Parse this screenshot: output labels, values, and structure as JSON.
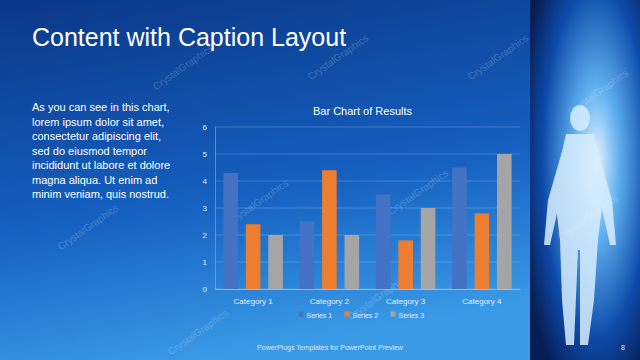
{
  "slide": {
    "title": "Content with Caption Layout",
    "caption_lines": [
      "As you can see in this chart,",
      "lorem ipsum dolor sit amet,",
      "consectetur adipiscing elit,",
      "sed do eiusmod tempor",
      "incididunt ut labore et dolore",
      "magna aliqua. Ut enim ad",
      "minim veniam, quis nostrud."
    ],
    "footer": "PowerPlugs Templates for PowerPoint Preview",
    "page_number": "8",
    "watermark": "CrystalGraphics"
  },
  "chart_data": {
    "type": "bar",
    "title": "Bar Chart of Results",
    "categories": [
      "Category 1",
      "Category 2",
      "Category 3",
      "Category 4"
    ],
    "series": [
      {
        "name": "Series 1",
        "color": "#4472c4",
        "values": [
          4.3,
          2.5,
          3.5,
          4.5
        ]
      },
      {
        "name": "Series 2",
        "color": "#ed7d31",
        "values": [
          2.4,
          4.4,
          1.8,
          2.8
        ]
      },
      {
        "name": "Series 3",
        "color": "#a5a5a5",
        "values": [
          2,
          2,
          3,
          5
        ]
      }
    ],
    "ylim": [
      0,
      6
    ],
    "yticks": [
      0,
      1,
      2,
      3,
      4,
      5,
      6
    ],
    "grid": true,
    "legend": "bottom"
  }
}
